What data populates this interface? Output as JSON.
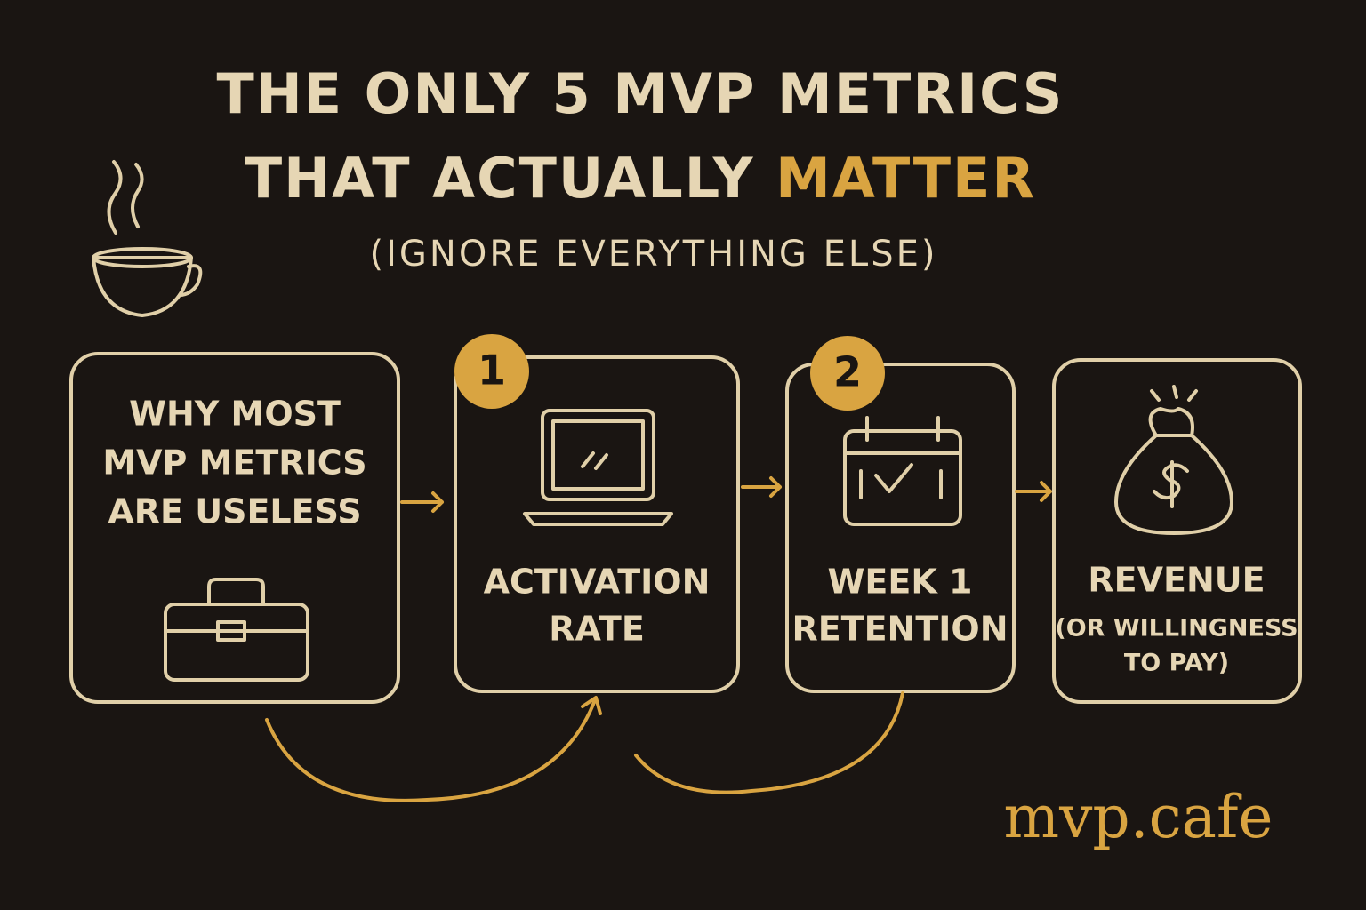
{
  "title": {
    "line1": "THE ONLY 5 MVP METRICS",
    "line2": "THAT ACTUALLY ",
    "highlight": "MATTER"
  },
  "subtitle": "(IGNORE EVERYTHING ELSE)",
  "cards": [
    {
      "lines": [
        "WHY MOST",
        "MVP METRICS",
        "ARE USELESS"
      ]
    },
    {
      "badge": "1",
      "lines": [
        "ACTIVATION",
        "RATE"
      ]
    },
    {
      "badge": "2",
      "lines": [
        "WEEK 1",
        "RETENTION"
      ]
    },
    {
      "lines": [
        "REVENUE"
      ],
      "sublines": [
        "(OR WILLINGNESS",
        "TO PAY)"
      ]
    }
  ],
  "brand": "mvp.cafe"
}
